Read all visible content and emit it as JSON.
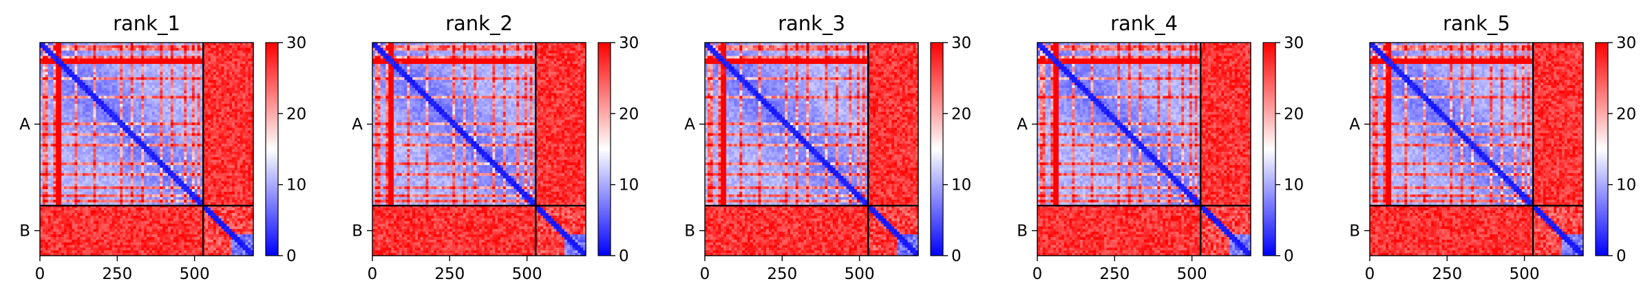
{
  "chart_data": [
    {
      "type": "heatmap",
      "title": "rank_1",
      "x_ticks": [
        0,
        250,
        500
      ],
      "y_ticks": [
        "A",
        "B"
      ],
      "colorbar": {
        "min": 0,
        "max": 30,
        "ticks": [
          0,
          10,
          20,
          30
        ],
        "colormap": "bwr"
      }
    },
    {
      "type": "heatmap",
      "title": "rank_2",
      "x_ticks": [
        0,
        250,
        500
      ],
      "y_ticks": [
        "A",
        "B"
      ],
      "colorbar": {
        "min": 0,
        "max": 30,
        "ticks": [
          0,
          10,
          20,
          30
        ],
        "colormap": "bwr"
      }
    },
    {
      "type": "heatmap",
      "title": "rank_3",
      "x_ticks": [
        0,
        250,
        500
      ],
      "y_ticks": [
        "A",
        "B"
      ],
      "colorbar": {
        "min": 0,
        "max": 30,
        "ticks": [
          0,
          10,
          20,
          30
        ],
        "colormap": "bwr"
      }
    },
    {
      "type": "heatmap",
      "title": "rank_4",
      "x_ticks": [
        0,
        250,
        500
      ],
      "y_ticks": [
        "A",
        "B"
      ],
      "colorbar": {
        "min": 0,
        "max": 30,
        "ticks": [
          0,
          10,
          20,
          30
        ],
        "colormap": "bwr"
      }
    },
    {
      "type": "heatmap",
      "title": "rank_5",
      "x_ticks": [
        0,
        250,
        500
      ],
      "y_ticks": [
        "A",
        "B"
      ],
      "colorbar": {
        "min": 0,
        "max": 30,
        "ticks": [
          0,
          10,
          20,
          30
        ],
        "colormap": "bwr"
      }
    }
  ],
  "matrix": {
    "total_length": 690,
    "chain_a_length": 528,
    "diverging_colors": {
      "low": "#0000ff",
      "mid": "#ffffff",
      "high": "#ff0000"
    }
  }
}
